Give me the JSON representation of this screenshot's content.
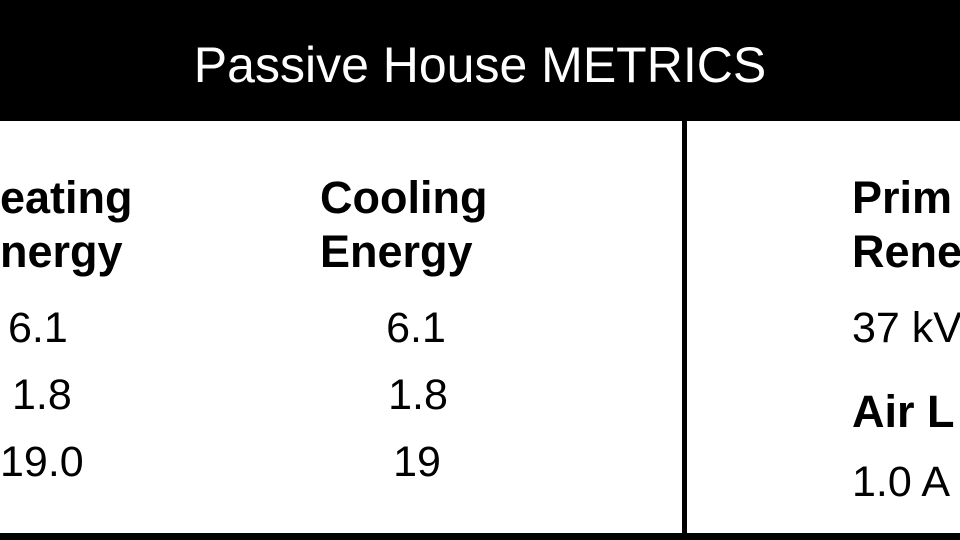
{
  "header": {
    "title": "Passive House METRICS"
  },
  "table": {
    "columns": [
      {
        "heading": [
          "eating",
          "nergy"
        ],
        "values": [
          "6.1",
          "1.8",
          "19.0"
        ]
      },
      {
        "heading": [
          "Cooling",
          "Energy"
        ],
        "values": [
          "6.1",
          "1.8",
          "19"
        ]
      },
      {
        "heading": [
          "Prim",
          "Rene"
        ],
        "values": [
          "37 kV"
        ],
        "subheading": "Air L",
        "subvalues": [
          "1.0 A"
        ]
      }
    ]
  }
}
